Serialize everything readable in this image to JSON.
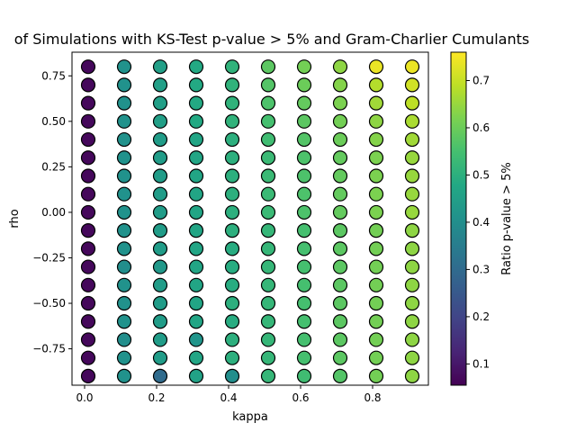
{
  "chart_data": {
    "type": "scatter",
    "title": "of Simulations with KS-Test p-value > 5% and Gram-Charlier Cumulants",
    "xlabel": "kappa",
    "ylabel": "rho",
    "colorbar_label": "Ratio p-value > 5%",
    "colormap": "viridis",
    "xlim": [
      -0.035,
      0.955
    ],
    "ylim": [
      -0.95,
      0.88
    ],
    "clim": [
      0.055,
      0.76
    ],
    "x_ticks": [
      0.0,
      0.2,
      0.4,
      0.6,
      0.8
    ],
    "x_tick_labels": [
      "0.0",
      "0.2",
      "0.4",
      "0.6",
      "0.8"
    ],
    "y_ticks": [
      -0.75,
      -0.5,
      -0.25,
      0.0,
      0.25,
      0.5,
      0.75
    ],
    "y_tick_labels": [
      "−0.75",
      "−0.50",
      "−0.25",
      "0.00",
      "0.25",
      "0.50",
      "0.75"
    ],
    "c_ticks": [
      0.1,
      0.2,
      0.3,
      0.4,
      0.5,
      0.6,
      0.7
    ],
    "c_tick_labels": [
      "0.1",
      "0.2",
      "0.3",
      "0.4",
      "0.5",
      "0.6",
      "0.7"
    ],
    "kappa": [
      0.01,
      0.11,
      0.21,
      0.31,
      0.41,
      0.51,
      0.61,
      0.71,
      0.81,
      0.91
    ],
    "rho": [
      -0.9,
      -0.8,
      -0.7,
      -0.6,
      -0.5,
      -0.4,
      -0.3,
      -0.2,
      -0.1,
      0.0,
      0.1,
      0.2,
      0.3,
      0.4,
      0.5,
      0.6,
      0.7,
      0.8
    ],
    "ratio": [
      [
        0.07,
        0.41,
        0.3,
        0.46,
        0.4,
        0.52,
        0.54,
        0.57,
        0.61,
        0.64
      ],
      [
        0.07,
        0.41,
        0.44,
        0.47,
        0.5,
        0.52,
        0.55,
        0.58,
        0.61,
        0.64
      ],
      [
        0.07,
        0.4,
        0.44,
        0.42,
        0.5,
        0.52,
        0.55,
        0.58,
        0.61,
        0.64
      ],
      [
        0.07,
        0.41,
        0.44,
        0.47,
        0.49,
        0.52,
        0.55,
        0.58,
        0.61,
        0.64
      ],
      [
        0.07,
        0.41,
        0.44,
        0.47,
        0.5,
        0.52,
        0.55,
        0.58,
        0.61,
        0.64
      ],
      [
        0.07,
        0.41,
        0.44,
        0.47,
        0.49,
        0.52,
        0.55,
        0.58,
        0.61,
        0.64
      ],
      [
        0.07,
        0.4,
        0.43,
        0.47,
        0.49,
        0.52,
        0.55,
        0.58,
        0.61,
        0.64
      ],
      [
        0.07,
        0.41,
        0.44,
        0.47,
        0.49,
        0.52,
        0.55,
        0.58,
        0.61,
        0.64
      ],
      [
        0.07,
        0.41,
        0.44,
        0.47,
        0.5,
        0.52,
        0.55,
        0.58,
        0.61,
        0.64
      ],
      [
        0.07,
        0.41,
        0.44,
        0.47,
        0.5,
        0.53,
        0.56,
        0.59,
        0.62,
        0.65
      ],
      [
        0.07,
        0.41,
        0.44,
        0.47,
        0.5,
        0.53,
        0.56,
        0.59,
        0.62,
        0.65
      ],
      [
        0.07,
        0.41,
        0.44,
        0.47,
        0.5,
        0.53,
        0.56,
        0.59,
        0.62,
        0.65
      ],
      [
        0.07,
        0.41,
        0.44,
        0.47,
        0.5,
        0.53,
        0.56,
        0.59,
        0.62,
        0.65
      ],
      [
        0.07,
        0.41,
        0.44,
        0.47,
        0.5,
        0.54,
        0.57,
        0.6,
        0.63,
        0.66
      ],
      [
        0.07,
        0.41,
        0.45,
        0.48,
        0.51,
        0.55,
        0.58,
        0.61,
        0.64,
        0.67
      ],
      [
        0.07,
        0.41,
        0.45,
        0.48,
        0.51,
        0.56,
        0.59,
        0.62,
        0.66,
        0.69
      ],
      [
        0.07,
        0.41,
        0.45,
        0.48,
        0.51,
        0.57,
        0.6,
        0.63,
        0.68,
        0.71
      ],
      [
        0.07,
        0.41,
        0.45,
        0.48,
        0.51,
        0.58,
        0.61,
        0.64,
        0.74,
        0.74
      ]
    ]
  }
}
